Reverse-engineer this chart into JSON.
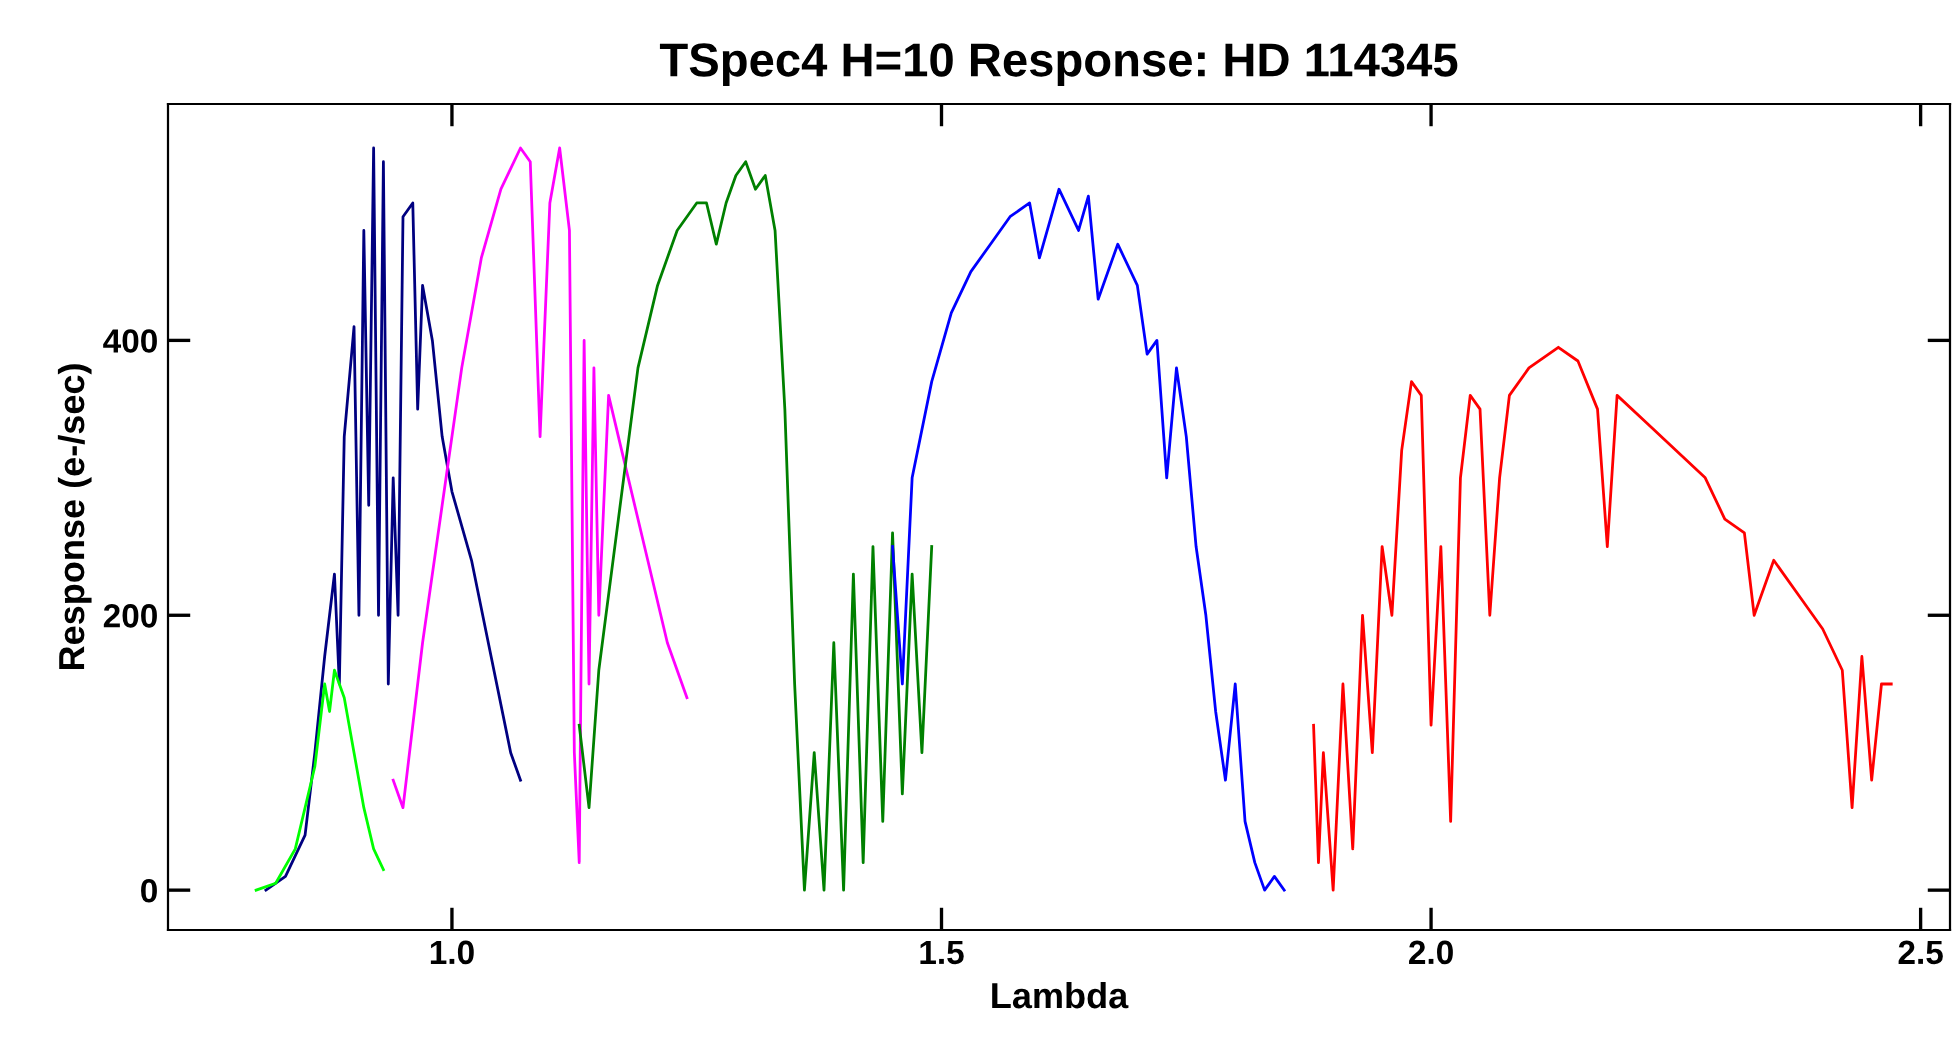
{
  "chart_data": {
    "type": "line",
    "title": "TSpec4 H=10 Response: HD 114345",
    "xlabel": "Lambda",
    "ylabel": "Response (e-/sec)",
    "xlim": [
      0.71,
      2.53
    ],
    "ylim": [
      -29,
      572
    ],
    "xticks": [
      {
        "value": 1.0,
        "label": "1.0"
      },
      {
        "value": 1.5,
        "label": "1.5"
      },
      {
        "value": 2.0,
        "label": "2.0"
      },
      {
        "value": 2.5,
        "label": "2.5"
      }
    ],
    "yticks": [
      0,
      200,
      400
    ],
    "grid": false,
    "legend": false,
    "marker": "none",
    "line_style": "solid",
    "series": [
      {
        "color": "#000080",
        "x": [
          0.81,
          0.83,
          0.85,
          0.86,
          0.87,
          0.88,
          0.885,
          0.89,
          0.9,
          0.905,
          0.91,
          0.915,
          0.92,
          0.925,
          0.93,
          0.935,
          0.94,
          0.945,
          0.95,
          0.96,
          0.965,
          0.97,
          0.98,
          0.99,
          1.0,
          1.02,
          1.04,
          1.06,
          1.07
        ],
        "values": [
          0,
          10,
          40,
          100,
          170,
          230,
          150,
          330,
          410,
          200,
          480,
          280,
          540,
          200,
          530,
          150,
          300,
          200,
          490,
          500,
          350,
          440,
          400,
          330,
          290,
          240,
          170,
          100,
          80
        ]
      },
      {
        "color": "#00ff00",
        "x": [
          0.8,
          0.82,
          0.84,
          0.86,
          0.87,
          0.875,
          0.88,
          0.89,
          0.9,
          0.91,
          0.92,
          0.93
        ],
        "values": [
          0,
          5,
          30,
          90,
          150,
          130,
          160,
          140,
          100,
          60,
          30,
          15
        ]
      },
      {
        "color": "#ff00ff",
        "x": [
          0.94,
          0.95,
          0.97,
          0.99,
          1.01,
          1.03,
          1.05,
          1.07,
          1.08,
          1.09,
          1.1,
          1.11,
          1.12,
          1.125,
          1.13,
          1.135,
          1.14,
          1.145,
          1.15,
          1.16,
          1.18,
          1.2,
          1.22,
          1.24
        ],
        "values": [
          80,
          60,
          180,
          280,
          380,
          460,
          510,
          540,
          530,
          330,
          500,
          540,
          480,
          100,
          20,
          400,
          150,
          380,
          200,
          360,
          300,
          240,
          180,
          140
        ]
      },
      {
        "color": "#008000",
        "x": [
          1.13,
          1.14,
          1.15,
          1.17,
          1.19,
          1.21,
          1.23,
          1.25,
          1.26,
          1.27,
          1.28,
          1.29,
          1.3,
          1.31,
          1.32,
          1.33,
          1.34,
          1.35,
          1.36,
          1.37,
          1.38,
          1.39,
          1.4,
          1.41,
          1.42,
          1.43,
          1.44,
          1.45,
          1.46,
          1.47,
          1.48,
          1.49
        ],
        "values": [
          120,
          60,
          160,
          270,
          380,
          440,
          480,
          500,
          500,
          470,
          500,
          520,
          530,
          510,
          520,
          480,
          350,
          150,
          0,
          100,
          0,
          180,
          0,
          230,
          20,
          250,
          50,
          260,
          70,
          230,
          100,
          250
        ]
      },
      {
        "color": "#0000ff",
        "x": [
          1.45,
          1.46,
          1.47,
          1.49,
          1.51,
          1.53,
          1.55,
          1.57,
          1.59,
          1.6,
          1.62,
          1.64,
          1.65,
          1.66,
          1.68,
          1.7,
          1.71,
          1.72,
          1.73,
          1.74,
          1.75,
          1.76,
          1.77,
          1.78,
          1.79,
          1.8,
          1.81,
          1.82,
          1.83,
          1.84,
          1.85
        ],
        "values": [
          250,
          150,
          300,
          370,
          420,
          450,
          470,
          490,
          500,
          460,
          510,
          480,
          505,
          430,
          470,
          440,
          390,
          400,
          300,
          380,
          330,
          250,
          200,
          130,
          80,
          150,
          50,
          20,
          0,
          10,
          0
        ]
      },
      {
        "color": "#ff0000",
        "x": [
          1.88,
          1.885,
          1.89,
          1.9,
          1.91,
          1.92,
          1.93,
          1.94,
          1.95,
          1.96,
          1.97,
          1.98,
          1.99,
          2.0,
          2.01,
          2.02,
          2.03,
          2.04,
          2.05,
          2.06,
          2.07,
          2.08,
          2.1,
          2.13,
          2.15,
          2.17,
          2.18,
          2.19,
          2.22,
          2.25,
          2.28,
          2.3,
          2.32,
          2.33,
          2.35,
          2.38,
          2.4,
          2.42,
          2.43,
          2.44,
          2.45,
          2.46,
          2.47
        ],
        "values": [
          120,
          20,
          100,
          0,
          150,
          30,
          200,
          100,
          250,
          200,
          320,
          370,
          360,
          120,
          250,
          50,
          300,
          360,
          350,
          200,
          300,
          360,
          380,
          395,
          385,
          350,
          250,
          360,
          340,
          320,
          300,
          270,
          260,
          200,
          240,
          210,
          190,
          160,
          60,
          170,
          80,
          150,
          150
        ]
      }
    ]
  }
}
